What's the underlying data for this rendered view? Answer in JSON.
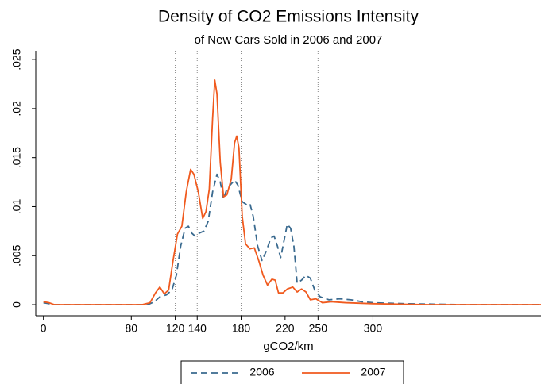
{
  "chart_data": {
    "type": "line",
    "title": "Density of CO2 Emissions Intensity",
    "subtitle": "of New Cars Sold in 2006 and 2007",
    "x_label": "gCO2/km",
    "xlim": [
      -7,
      453
    ],
    "xticks": [
      0,
      80,
      120,
      140,
      180,
      220,
      250,
      300
    ],
    "ylim": [
      -0.00113,
      0.0259
    ],
    "yticks": [
      0,
      {
        "value": 0.005,
        "label": ".005"
      },
      {
        "value": 0.01,
        "label": ".01"
      },
      {
        "value": 0.015,
        "label": ".015"
      },
      {
        "value": 0.02,
        "label": ".02"
      },
      {
        "value": 0.025,
        "label": ".025"
      }
    ],
    "xlines": [
      120,
      140,
      180,
      250
    ],
    "series": [
      {
        "name": "2006",
        "color": "#3a6a8f",
        "dash": true,
        "x": [
          0,
          5,
          10,
          95,
          101,
          106,
          112,
          117,
          121,
          125,
          129,
          132,
          135,
          138,
          142,
          146,
          150,
          154,
          158,
          161,
          164,
          167,
          170,
          174,
          177,
          181,
          185,
          188,
          191,
          195,
          199,
          203,
          207,
          210,
          213,
          216,
          219,
          222,
          225,
          228,
          231,
          235,
          239,
          243,
          247,
          252,
          260,
          270,
          280,
          290,
          300,
          330,
          380,
          453
        ],
        "values": [
          0.0002,
          0.0001,
          0,
          0,
          0.0003,
          0.0008,
          0.001,
          0.0015,
          0.003,
          0.006,
          0.0078,
          0.008,
          0.0073,
          0.007,
          0.0073,
          0.0075,
          0.0085,
          0.0115,
          0.0133,
          0.0125,
          0.0108,
          0.0118,
          0.0122,
          0.0127,
          0.0122,
          0.0105,
          0.0102,
          0.0103,
          0.009,
          0.006,
          0.0045,
          0.0055,
          0.0068,
          0.007,
          0.006,
          0.0048,
          0.0065,
          0.0082,
          0.0078,
          0.006,
          0.0022,
          0.0025,
          0.003,
          0.0027,
          0.0015,
          0.0008,
          0.0005,
          0.0006,
          0.0005,
          0.0003,
          0.0002,
          0.0001,
          0,
          0
        ]
      },
      {
        "name": "2007",
        "color": "#f05a1e",
        "dash": false,
        "x": [
          0,
          5,
          10,
          90,
          97,
          102,
          106,
          110,
          114,
          118,
          122,
          126,
          130,
          134,
          137,
          141,
          145,
          148,
          151,
          154,
          156,
          158,
          161,
          164,
          167,
          171,
          174,
          176,
          178,
          181,
          184,
          188,
          192,
          196,
          200,
          204,
          208,
          211,
          214,
          218,
          222,
          227,
          231,
          235,
          239,
          243,
          248,
          254,
          262,
          275,
          300,
          350,
          453
        ],
        "values": [
          0.0003,
          0.0002,
          0,
          0,
          0.0002,
          0.0012,
          0.0018,
          0.0011,
          0.0015,
          0.0045,
          0.0072,
          0.008,
          0.0115,
          0.0138,
          0.0133,
          0.0115,
          0.0088,
          0.0095,
          0.0118,
          0.019,
          0.0229,
          0.0215,
          0.0145,
          0.011,
          0.0112,
          0.0128,
          0.0165,
          0.0172,
          0.016,
          0.009,
          0.0062,
          0.0057,
          0.0058,
          0.0045,
          0.003,
          0.002,
          0.0026,
          0.0025,
          0.0012,
          0.0012,
          0.0016,
          0.0018,
          0.0013,
          0.0016,
          0.0013,
          0.0005,
          0.0006,
          0.0002,
          0.0003,
          0.0002,
          0.0001,
          0,
          0
        ]
      }
    ]
  }
}
